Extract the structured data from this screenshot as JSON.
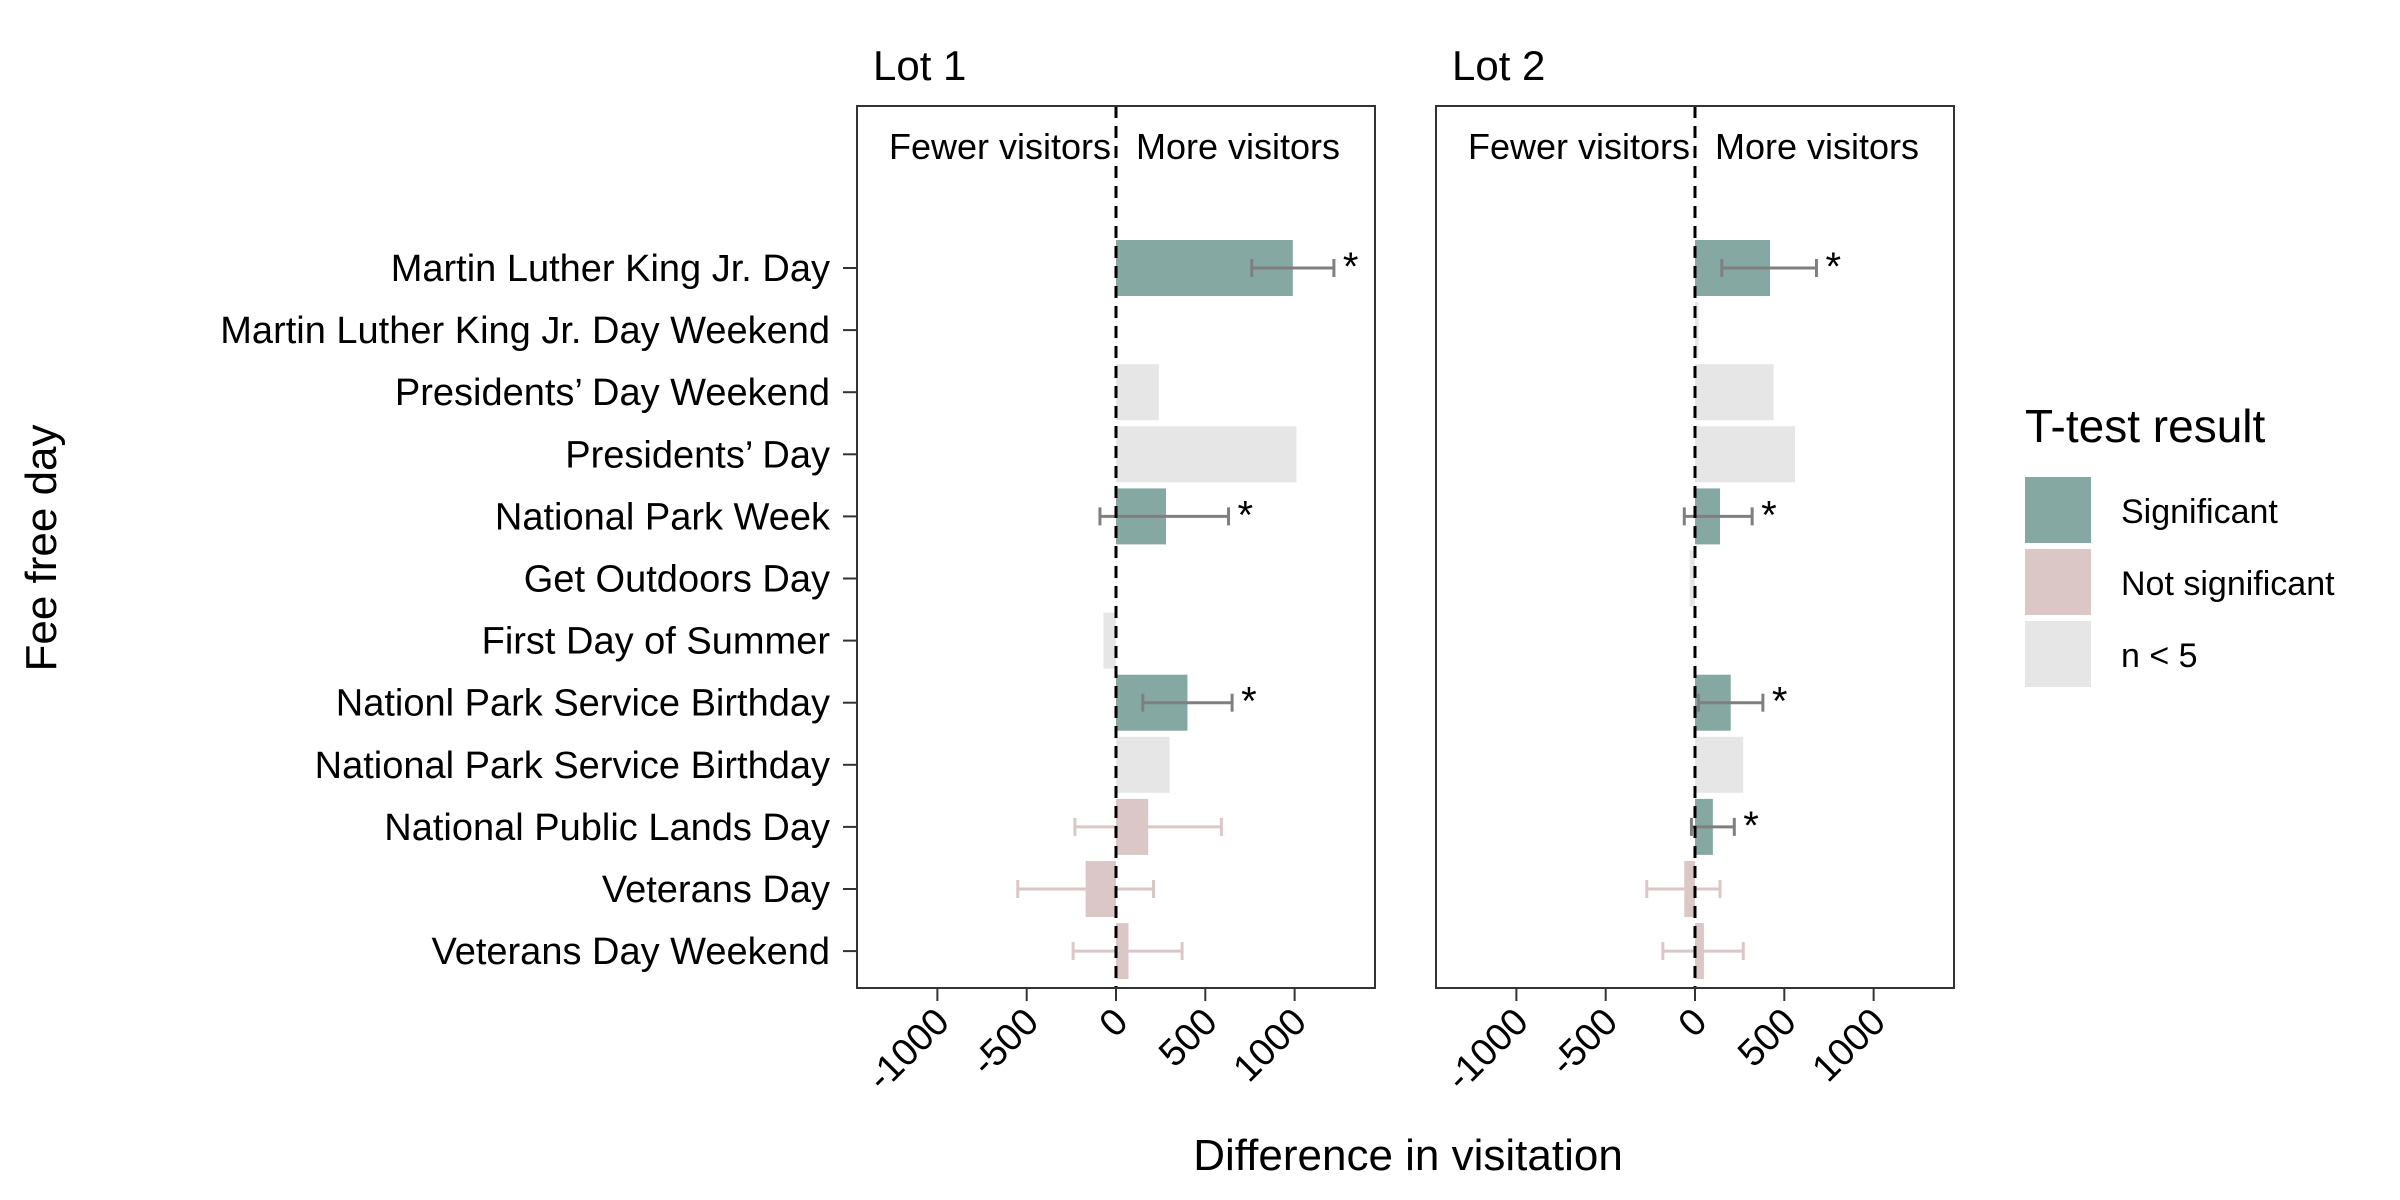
{
  "chart_data": {
    "type": "bar",
    "orientation": "horizontal",
    "xlabel": "Difference in visitation",
    "ylabel": "Fee free day",
    "xlim": [
      -1450,
      1450
    ],
    "xticks": [
      -1000,
      -500,
      0,
      500,
      1000
    ],
    "xtick_labels": [
      "-1000",
      "-500",
      "0",
      "500",
      "1000"
    ],
    "grid": false,
    "reference_line": 0,
    "direction_labels": [
      "Fewer visitors",
      "More visitors"
    ],
    "categories": [
      "Martin Luther King Jr. Day",
      "Martin Luther King Jr. Day Weekend",
      "Presidents’ Day Weekend",
      "Presidents’ Day",
      "National Park Week",
      "Get Outdoors Day",
      "First Day of Summer",
      "Nationl Park Service Birthday",
      "National Park Service Birthday",
      "National Public Lands Day",
      "Veterans Day",
      "Veterans Day Weekend"
    ],
    "legend": {
      "title": "T-test result",
      "position": "right",
      "entries": [
        {
          "key": "sig",
          "label": "Significant",
          "color": "#86a8a3"
        },
        {
          "key": "ns",
          "label": "Not significant",
          "color": "#dbc7c6"
        },
        {
          "key": "small",
          "label": "n < 5",
          "color": "#e6e6e6"
        }
      ]
    },
    "colors": {
      "sig": "#86a8a3",
      "ns": "#dbc7c6",
      "small": "#e6e6e6",
      "err_sig": "#7f7f7f",
      "err_ns": "#dbc7c6"
    },
    "panels": [
      {
        "title": "Lot 1",
        "values": [
          990,
          0,
          240,
          1010,
          280,
          0,
          -70,
          400,
          300,
          180,
          -170,
          70
        ],
        "groups": [
          "sig",
          "small",
          "small",
          "small",
          "sig",
          "small",
          "small",
          "sig",
          "small",
          "ns",
          "ns",
          "ns"
        ],
        "err_low": [
          760,
          null,
          null,
          null,
          -90,
          null,
          null,
          150,
          null,
          -230,
          -550,
          -240
        ],
        "err_high": [
          1220,
          null,
          null,
          null,
          630,
          null,
          null,
          650,
          null,
          590,
          210,
          370
        ],
        "marks": [
          "*",
          "",
          "",
          "",
          "*",
          "",
          "",
          "*",
          "",
          "",
          "",
          ""
        ]
      },
      {
        "title": "Lot 2",
        "values": [
          420,
          20,
          440,
          560,
          140,
          -30,
          0,
          200,
          270,
          100,
          -60,
          50
        ],
        "groups": [
          "sig",
          "small",
          "small",
          "small",
          "sig",
          "small",
          "small",
          "sig",
          "small",
          "sig",
          "ns",
          "ns"
        ],
        "err_low": [
          150,
          null,
          null,
          null,
          -60,
          null,
          null,
          20,
          null,
          -20,
          -270,
          -180
        ],
        "err_high": [
          680,
          null,
          null,
          null,
          320,
          null,
          null,
          380,
          null,
          220,
          140,
          270
        ],
        "marks": [
          "*",
          "",
          "",
          "",
          "*",
          "",
          "",
          "*",
          "",
          "*",
          "",
          ""
        ]
      }
    ]
  }
}
